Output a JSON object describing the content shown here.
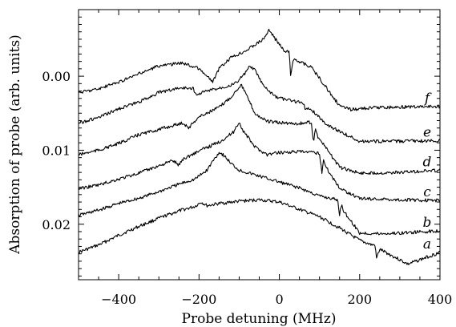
{
  "chart_data": {
    "type": "line",
    "title": "",
    "xlabel": "Probe detuning (MHz)",
    "ylabel": "Absorption of probe (arb. units)",
    "xlim": [
      -500,
      400
    ],
    "ylim": [
      -0.009,
      0.0275
    ],
    "y_inverted": true,
    "x_ticks": [
      "−400",
      "−200",
      "0",
      "200",
      "400"
    ],
    "x_tick_values": [
      -400,
      -200,
      0,
      200,
      400
    ],
    "y_ticks": [
      "0.00",
      "0.01",
      "0.02"
    ],
    "y_tick_values": [
      0.0,
      0.01,
      0.02
    ],
    "grid": false,
    "series": [
      {
        "name": "a",
        "x": [
          -500,
          -450,
          -400,
          -350,
          -300,
          -250,
          -210,
          -195,
          -180,
          -150,
          -100,
          -50,
          0,
          50,
          100,
          150,
          200,
          230,
          238,
          242,
          250,
          300,
          320,
          360,
          400
        ],
        "values": [
          0.0238,
          0.0228,
          0.0215,
          0.0203,
          0.0192,
          0.0182,
          0.0176,
          0.017,
          0.0175,
          0.0172,
          0.0169,
          0.0167,
          0.017,
          0.018,
          0.019,
          0.0205,
          0.0222,
          0.0228,
          0.0228,
          0.0246,
          0.0234,
          0.0248,
          0.0254,
          0.0246,
          0.0238
        ]
      },
      {
        "name": "b",
        "x": [
          -500,
          -450,
          -400,
          -350,
          -300,
          -250,
          -210,
          -180,
          -165,
          -150,
          -140,
          -120,
          -100,
          -50,
          0,
          50,
          100,
          145,
          150,
          155,
          160,
          200,
          250,
          300,
          400
        ],
        "values": [
          0.0188,
          0.0181,
          0.0172,
          0.0165,
          0.0156,
          0.0146,
          0.0139,
          0.0127,
          0.0114,
          0.0103,
          0.0106,
          0.0118,
          0.0127,
          0.0135,
          0.0143,
          0.0151,
          0.0162,
          0.0167,
          0.0187,
          0.0172,
          0.0182,
          0.0212,
          0.0213,
          0.0212,
          0.0209
        ]
      },
      {
        "name": "c",
        "x": [
          -500,
          -450,
          -400,
          -350,
          -300,
          -265,
          -250,
          -240,
          -200,
          -150,
          -115,
          -100,
          -90,
          -60,
          -30,
          0,
          50,
          100,
          106,
          110,
          115,
          150,
          200,
          300,
          400
        ],
        "values": [
          0.0152,
          0.0147,
          0.0139,
          0.0131,
          0.0121,
          0.0114,
          0.012,
          0.0112,
          0.0101,
          0.0089,
          0.0076,
          0.0062,
          0.0074,
          0.0096,
          0.0106,
          0.0103,
          0.0102,
          0.0104,
          0.013,
          0.0112,
          0.0122,
          0.0151,
          0.0165,
          0.0167,
          0.0168
        ]
      },
      {
        "name": "d",
        "x": [
          -500,
          -450,
          -400,
          -350,
          -300,
          -240,
          -225,
          -215,
          -200,
          -150,
          -120,
          -95,
          -80,
          -60,
          -30,
          0,
          50,
          80,
          85,
          90,
          95,
          150,
          200,
          300,
          400
        ],
        "values": [
          0.0106,
          0.01,
          0.0091,
          0.0079,
          0.0072,
          0.0063,
          0.007,
          0.0063,
          0.0055,
          0.0042,
          0.0028,
          0.0011,
          0.0028,
          0.0051,
          0.0061,
          0.0063,
          0.0064,
          0.0062,
          0.009,
          0.007,
          0.0081,
          0.0123,
          0.0131,
          0.013,
          0.0127
        ]
      },
      {
        "name": "e",
        "x": [
          -500,
          -450,
          -400,
          -350,
          -300,
          -250,
          -215,
          -205,
          -195,
          -150,
          -110,
          -85,
          -75,
          -60,
          -40,
          -10,
          20,
          60,
          65,
          70,
          75,
          120,
          200,
          300,
          400
        ],
        "values": [
          0.0063,
          0.0056,
          0.0044,
          0.0035,
          0.0022,
          0.0016,
          0.0016,
          0.0027,
          0.0022,
          0.0016,
          0.001,
          -0.0004,
          -0.0013,
          -0.0008,
          0.0013,
          0.0028,
          0.0032,
          0.0036,
          0.0045,
          0.0045,
          0.0043,
          0.0066,
          0.0088,
          0.0088,
          0.0087
        ]
      },
      {
        "name": "f",
        "x": [
          -500,
          -450,
          -400,
          -350,
          -300,
          -240,
          -200,
          -175,
          -165,
          -150,
          -120,
          -80,
          -40,
          -25,
          -15,
          0,
          15,
          25,
          28,
          35,
          80,
          150,
          175,
          250,
          400
        ],
        "values": [
          0.0022,
          0.0017,
          0.0008,
          -0.0003,
          -0.0014,
          -0.0018,
          -0.001,
          0.0003,
          0.0007,
          -0.001,
          -0.0025,
          -0.0036,
          -0.005,
          -0.0063,
          -0.0054,
          -0.0043,
          -0.0032,
          -0.0035,
          0.0001,
          -0.0024,
          -0.0012,
          0.004,
          0.0045,
          0.0042,
          0.0041
        ]
      }
    ]
  }
}
